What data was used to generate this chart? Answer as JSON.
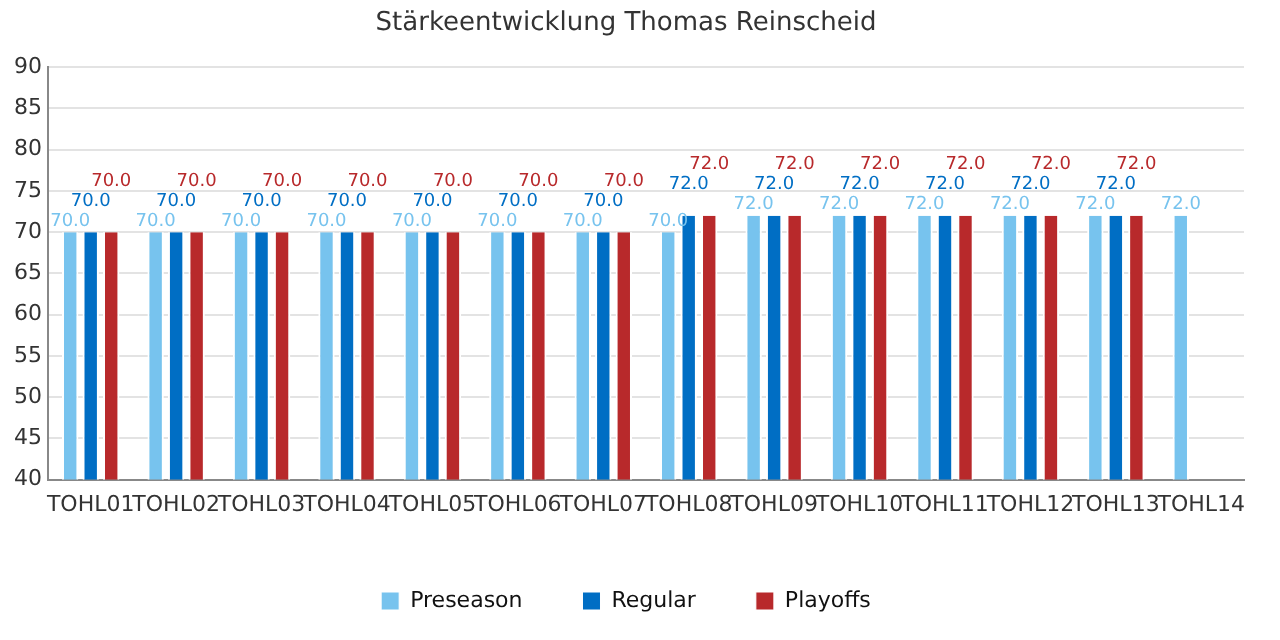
{
  "chart_data": {
    "type": "bar",
    "title": "Stärkeentwicklung Thomas Reinscheid",
    "categories": [
      "TOHL01",
      "TOHL02",
      "TOHL03",
      "TOHL04",
      "TOHL05",
      "TOHL06",
      "TOHL07",
      "TOHL08",
      "TOHL09",
      "TOHL10",
      "TOHL11",
      "TOHL12",
      "TOHL13",
      "TOHL14"
    ],
    "series": [
      {
        "name": "Preseason",
        "color": "#77c3ee",
        "values": [
          70,
          70,
          70,
          70,
          70,
          70,
          70,
          70,
          72,
          72,
          72,
          72,
          72,
          72
        ],
        "value_labels": [
          "70.0",
          "70.0",
          "70.0",
          "70.0",
          "70.0",
          "70.0",
          "70.0",
          "70.0",
          "72.0",
          "72.0",
          "72.0",
          "72.0",
          "72.0",
          "72.0"
        ]
      },
      {
        "name": "Regular",
        "color": "#006ec4",
        "values": [
          70,
          70,
          70,
          70,
          70,
          70,
          70,
          72,
          72,
          72,
          72,
          72,
          72,
          null
        ],
        "value_labels": [
          "70.0",
          "70.0",
          "70.0",
          "70.0",
          "70.0",
          "70.0",
          "70.0",
          "72.0",
          "72.0",
          "72.0",
          "72.0",
          "72.0",
          "72.0",
          null
        ]
      },
      {
        "name": "Playoffs",
        "color": "#b8292b",
        "values": [
          70,
          70,
          70,
          70,
          70,
          70,
          70,
          72,
          72,
          72,
          72,
          72,
          72,
          null
        ],
        "value_labels": [
          "70.0",
          "70.0",
          "70.0",
          "70.0",
          "70.0",
          "70.0",
          "70.0",
          "72.0",
          "72.0",
          "72.0",
          "72.0",
          "72.0",
          "72.0",
          null
        ]
      }
    ],
    "ylim": [
      40,
      90
    ],
    "yticks": [
      40,
      45,
      50,
      55,
      60,
      65,
      70,
      75,
      80,
      85,
      90
    ],
    "grid": "y",
    "legend": "bottom"
  }
}
